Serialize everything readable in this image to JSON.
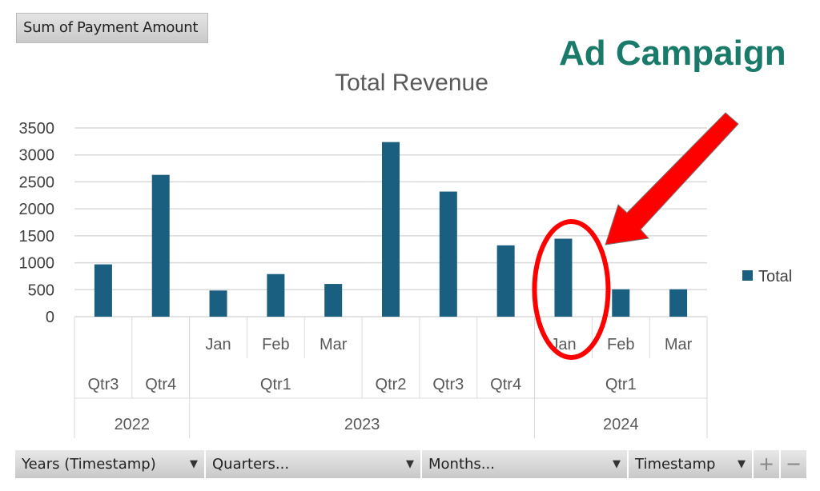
{
  "field_button": "Sum of Payment Amount",
  "annotation": "Ad Campaign",
  "chart_data": {
    "type": "bar",
    "title": "Total Revenue",
    "ylim": [
      0,
      3500
    ],
    "yticks": [
      "0",
      "500",
      "1000",
      "1500",
      "2000",
      "2500",
      "3000",
      "3500"
    ],
    "legend": {
      "label": "Total",
      "placement": "right"
    },
    "color": "#1b5f80",
    "categories": [
      {
        "month": "",
        "quarter": "Qtr3",
        "year": "2022"
      },
      {
        "month": "",
        "quarter": "Qtr4",
        "year": "2022"
      },
      {
        "month": "Jan",
        "quarter": "Qtr1",
        "year": "2023"
      },
      {
        "month": "Feb",
        "quarter": "Qtr1",
        "year": "2023"
      },
      {
        "month": "Mar",
        "quarter": "Qtr1",
        "year": "2023"
      },
      {
        "month": "",
        "quarter": "Qtr2",
        "year": "2023"
      },
      {
        "month": "",
        "quarter": "Qtr3",
        "year": "2023"
      },
      {
        "month": "",
        "quarter": "Qtr4",
        "year": "2023"
      },
      {
        "month": "Jan",
        "quarter": "Qtr1",
        "year": "2024"
      },
      {
        "month": "Feb",
        "quarter": "Qtr1",
        "year": "2024"
      },
      {
        "month": "Mar",
        "quarter": "Qtr1",
        "year": "2024"
      }
    ],
    "values": [
      970,
      2630,
      485,
      790,
      607,
      3238,
      2320,
      1323,
      1446,
      508,
      508
    ],
    "highlight_index": 8
  },
  "pivot_buttons": [
    {
      "label": "Years (Timestamp)"
    },
    {
      "label": "Quarters..."
    },
    {
      "label": "Months..."
    },
    {
      "label": "Timestamp"
    }
  ],
  "expand_label": "+",
  "collapse_label": "−"
}
